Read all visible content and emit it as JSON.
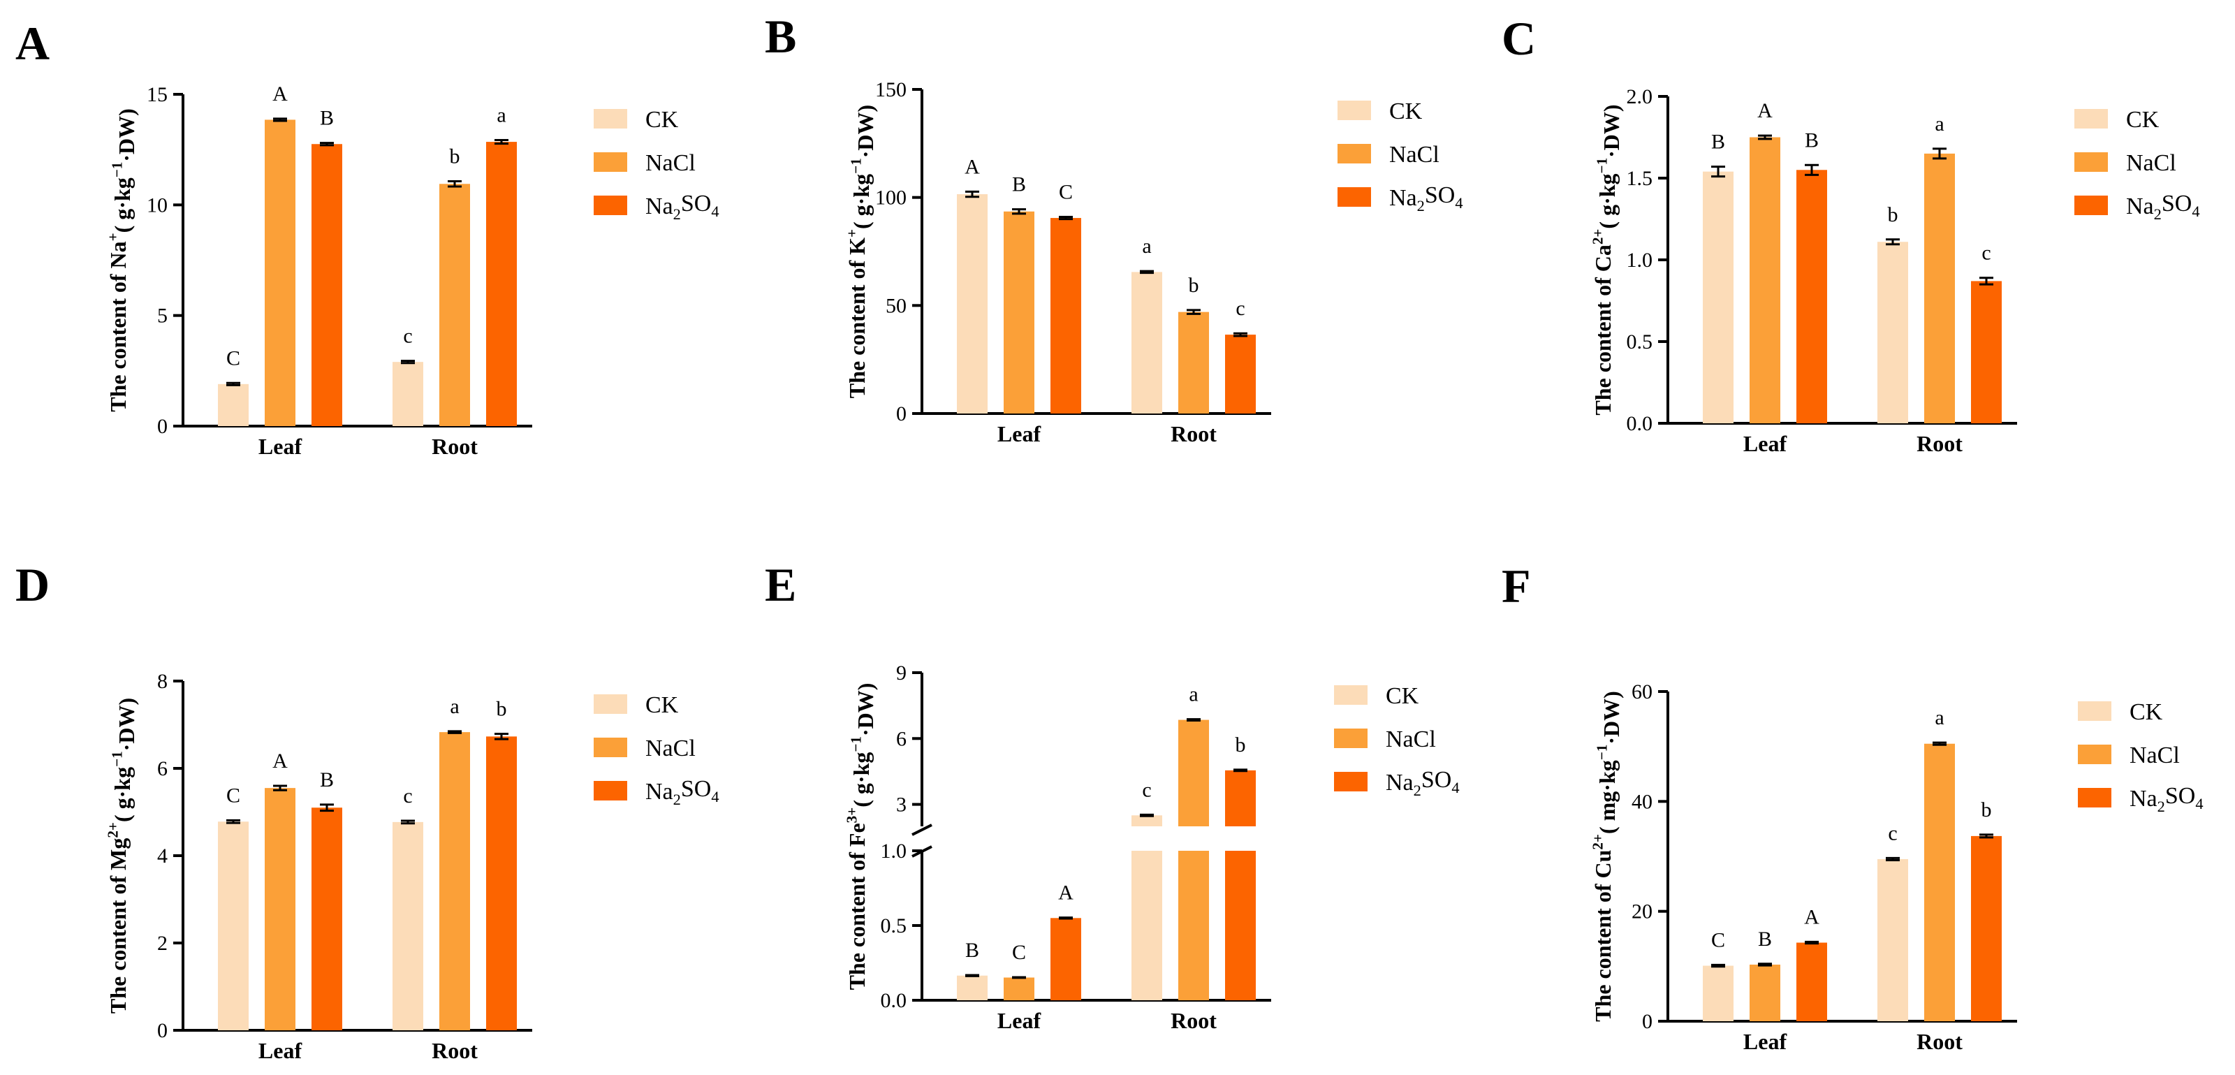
{
  "chart_data": [
    {
      "panel": "A",
      "type": "bar",
      "title": "",
      "ylabel": "The content of Na⁺( g·kg⁻¹·DW)",
      "categories": [
        "Leaf",
        "Root"
      ],
      "ylim": [
        0,
        15
      ],
      "yticks": [
        "0",
        "5",
        "10",
        "15"
      ],
      "series": [
        {
          "name": "CK",
          "values": [
            1.9,
            2.9
          ],
          "errors": [
            0.05,
            0.05
          ],
          "letters": [
            "C",
            "c"
          ]
        },
        {
          "name": "NaCl",
          "values": [
            13.85,
            10.95
          ],
          "errors": [
            0.05,
            0.12
          ],
          "letters": [
            "A",
            "b"
          ]
        },
        {
          "name": "Na₂SO₄",
          "values": [
            12.75,
            12.85
          ],
          "errors": [
            0.05,
            0.08
          ],
          "letters": [
            "B",
            "a"
          ]
        }
      ]
    },
    {
      "panel": "B",
      "type": "bar",
      "title": "",
      "ylabel": "The content of K⁺( g·kg⁻¹·DW)",
      "categories": [
        "Leaf",
        "Root"
      ],
      "ylim": [
        0,
        150
      ],
      "yticks": [
        "0",
        "50",
        "100",
        "150"
      ],
      "series": [
        {
          "name": "CK",
          "values": [
            101.5,
            65.5
          ],
          "errors": [
            1.2,
            0.4
          ],
          "letters": [
            "A",
            "a"
          ]
        },
        {
          "name": "NaCl",
          "values": [
            93.5,
            47
          ],
          "errors": [
            1.0,
            0.9
          ],
          "letters": [
            "B",
            "b"
          ]
        },
        {
          "name": "Na₂SO₄",
          "values": [
            90.5,
            36.5
          ],
          "errors": [
            0.5,
            0.6
          ],
          "letters": [
            "C",
            "c"
          ]
        }
      ]
    },
    {
      "panel": "C",
      "type": "bar",
      "title": "",
      "ylabel": "The content of Ca²⁺( g·kg⁻¹·DW)",
      "categories": [
        "Leaf",
        "Root"
      ],
      "ylim": [
        0,
        2.0
      ],
      "yticks": [
        "0.0",
        "0.5",
        "1.0",
        "1.5",
        "2.0"
      ],
      "series": [
        {
          "name": "CK",
          "values": [
            1.54,
            1.11
          ],
          "errors": [
            0.03,
            0.015
          ],
          "letters": [
            "B",
            "b"
          ]
        },
        {
          "name": "NaCl",
          "values": [
            1.75,
            1.65
          ],
          "errors": [
            0.01,
            0.03
          ],
          "letters": [
            "A",
            "a"
          ]
        },
        {
          "name": "Na₂SO₄",
          "values": [
            1.55,
            0.87
          ],
          "errors": [
            0.03,
            0.02
          ],
          "letters": [
            "B",
            "c"
          ]
        }
      ]
    },
    {
      "panel": "D",
      "type": "bar",
      "title": "",
      "ylabel": "The content of Mg²⁺( g·kg⁻¹·DW)",
      "categories": [
        "Leaf",
        "Root"
      ],
      "ylim": [
        0,
        8
      ],
      "yticks": [
        "0",
        "2",
        "4",
        "6",
        "8"
      ],
      "series": [
        {
          "name": "CK",
          "values": [
            4.78,
            4.77
          ],
          "errors": [
            0.03,
            0.03
          ],
          "letters": [
            "C",
            "c"
          ]
        },
        {
          "name": "NaCl",
          "values": [
            5.55,
            6.83
          ],
          "errors": [
            0.05,
            0.02
          ],
          "letters": [
            "A",
            "a"
          ]
        },
        {
          "name": "Na₂SO₄",
          "values": [
            5.1,
            6.73
          ],
          "errors": [
            0.07,
            0.06
          ],
          "letters": [
            "B",
            "b"
          ]
        }
      ]
    },
    {
      "panel": "E",
      "type": "bar",
      "title": "",
      "ylabel": "The content of Fe³⁺( g·kg⁻¹·DW)",
      "categories": [
        "Leaf",
        "Root"
      ],
      "ylim": [
        0,
        9
      ],
      "axis_break": [
        1.0,
        2.0
      ],
      "yticks": [
        "0.0",
        "0.5",
        "1.0",
        "3",
        "6",
        "9"
      ],
      "series": [
        {
          "name": "CK",
          "values": [
            0.165,
            2.5
          ],
          "errors": [
            0.003,
            0.03
          ],
          "letters": [
            "B",
            "c"
          ]
        },
        {
          "name": "NaCl",
          "values": [
            0.152,
            6.85
          ],
          "errors": [
            0.002,
            0.03
          ],
          "letters": [
            "C",
            "a"
          ]
        },
        {
          "name": "Na₂SO₄",
          "values": [
            0.55,
            4.55
          ],
          "errors": [
            0.003,
            0.03
          ],
          "letters": [
            "A",
            "b"
          ]
        }
      ]
    },
    {
      "panel": "F",
      "type": "bar",
      "title": "",
      "ylabel": "The content of Cu²⁺( mg·kg⁻¹·DW)",
      "categories": [
        "Leaf",
        "Root"
      ],
      "ylim": [
        0,
        60
      ],
      "yticks": [
        "0",
        "20",
        "40",
        "60"
      ],
      "series": [
        {
          "name": "CK",
          "values": [
            10.1,
            29.5
          ],
          "errors": [
            0.15,
            0.2
          ],
          "letters": [
            "C",
            "c"
          ]
        },
        {
          "name": "NaCl",
          "values": [
            10.3,
            50.5
          ],
          "errors": [
            0.15,
            0.2
          ],
          "letters": [
            "B",
            "a"
          ]
        },
        {
          "name": "Na₂SO₄",
          "values": [
            14.3,
            33.7
          ],
          "errors": [
            0.15,
            0.25
          ],
          "letters": [
            "A",
            "b"
          ]
        }
      ]
    }
  ],
  "legend": {
    "items": [
      "CK",
      "NaCl",
      "Na2SO4"
    ]
  },
  "colors": {
    "CK": "#fcdcb8",
    "NaCl": "#fba038",
    "Na2SO4": "#fc6400"
  }
}
